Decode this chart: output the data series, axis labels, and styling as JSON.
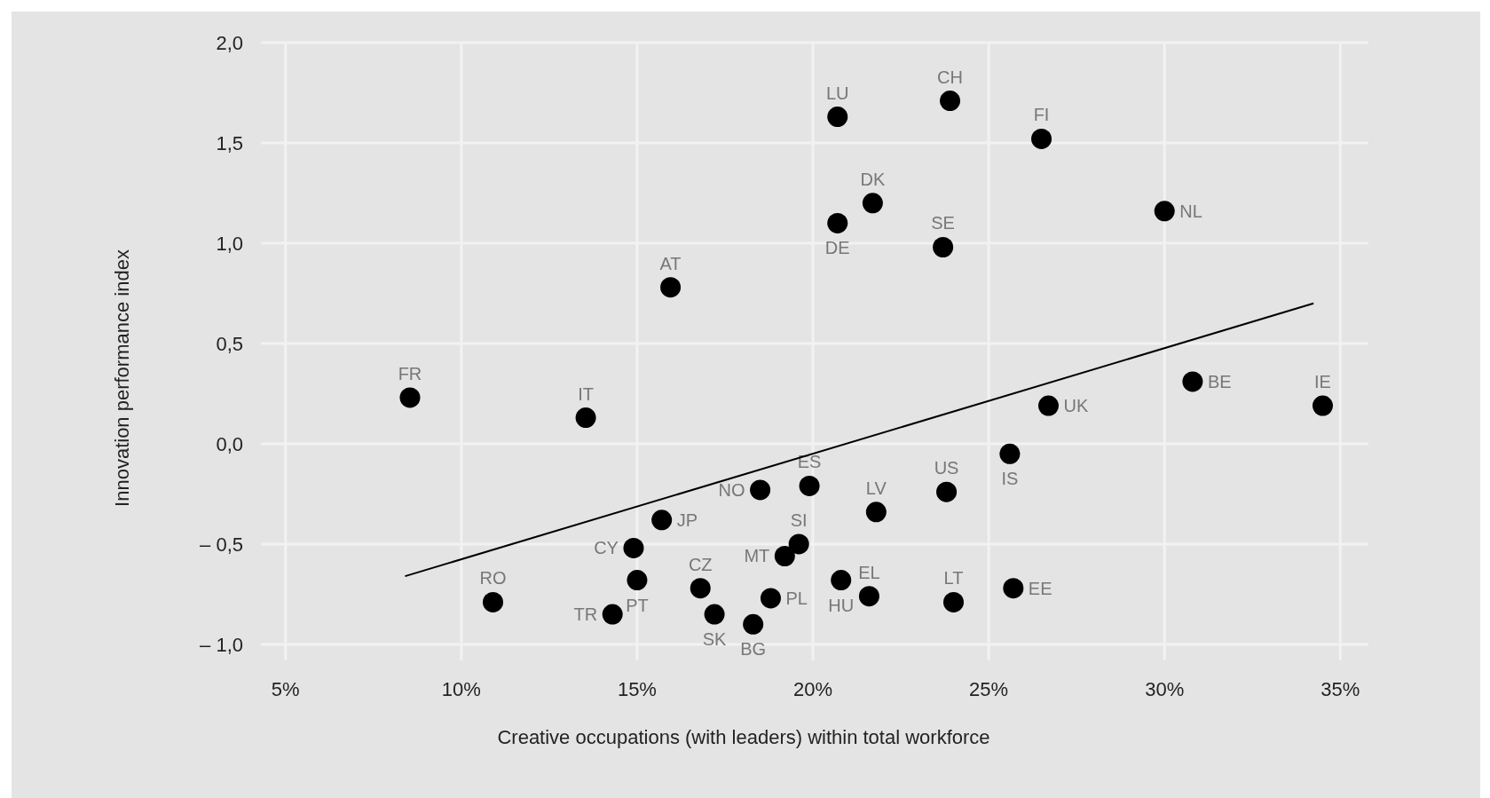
{
  "chart_data": {
    "type": "scatter",
    "xlabel": "Creative occupations (with leaders) within total workforce",
    "ylabel": "Innovation performance index",
    "xlim": [
      4.3,
      35.8
    ],
    "ylim": [
      -1.08,
      2.0
    ],
    "xticks": [
      {
        "value": 5,
        "label": "5%"
      },
      {
        "value": 10,
        "label": "10%"
      },
      {
        "value": 15,
        "label": "15%"
      },
      {
        "value": 20,
        "label": "20%"
      },
      {
        "value": 25,
        "label": "25%"
      },
      {
        "value": 30,
        "label": "30%"
      },
      {
        "value": 35,
        "label": "35%"
      }
    ],
    "yticks": [
      {
        "value": -1,
        "label": "– 1,0"
      },
      {
        "value": -0.5,
        "label": "– 0,5"
      },
      {
        "value": 0,
        "label": "0,0"
      },
      {
        "value": 0.5,
        "label": "0,5"
      },
      {
        "value": 1,
        "label": "1,0"
      },
      {
        "value": 1.5,
        "label": "1,5"
      },
      {
        "value": 2,
        "label": "2,0"
      }
    ],
    "grid": true,
    "series": [
      {
        "marker": "circle",
        "color": "#000000",
        "x": [
          8.54,
          13.54,
          15.95,
          20.7,
          23.9,
          26.5,
          21.7,
          20.7,
          23.7,
          30.0,
          30.8,
          34.5,
          26.7,
          25.6,
          19.9,
          18.5,
          23.8,
          21.8,
          15.7,
          19.6,
          19.2,
          14.9,
          15.0,
          16.8,
          20.8,
          21.6,
          24.0,
          25.7,
          10.9,
          14.3,
          17.2,
          18.8,
          18.3
        ],
        "values": [
          0.23,
          0.13,
          0.78,
          1.63,
          1.71,
          1.52,
          1.2,
          1.1,
          0.98,
          1.16,
          0.31,
          0.19,
          0.19,
          -0.05,
          -0.21,
          -0.23,
          -0.24,
          -0.34,
          -0.38,
          -0.5,
          -0.56,
          -0.52,
          -0.68,
          -0.72,
          -0.68,
          -0.76,
          -0.79,
          -0.72,
          -0.79,
          -0.85,
          -0.85,
          -0.77,
          -0.9
        ],
        "value_labels": [
          "FR",
          "IT",
          "AT",
          "LU",
          "CH",
          "FI",
          "DK",
          "DE",
          "SE",
          "NL",
          "BE",
          "IE",
          "UK",
          "IS",
          "ES",
          "NO",
          "US",
          "LV",
          "JP",
          "SI",
          "MT",
          "CY",
          "PT",
          "CZ",
          "HU",
          "EL",
          "LT",
          "EE",
          "RO",
          "TR",
          "SK",
          "PL",
          "BG"
        ]
      },
      {
        "type": "line",
        "color": "#000000",
        "x": [
          8.4,
          34.24
        ],
        "values": [
          -0.66,
          0.7
        ],
        "marker": "none"
      }
    ]
  }
}
